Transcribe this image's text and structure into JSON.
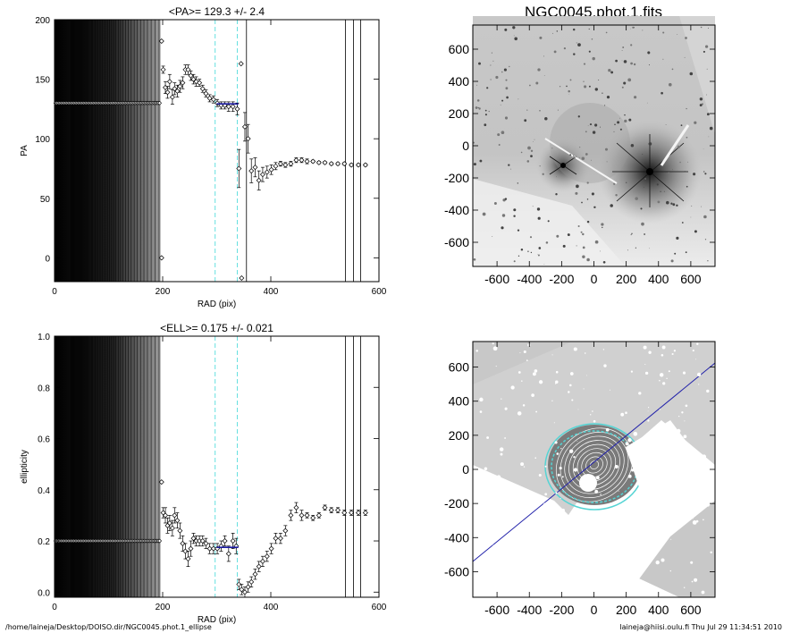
{
  "footer": {
    "path": "/home/laineja/Desktop/DOISO.dir/NGC0045.phot.1_ellipse",
    "user_stamp": "laineja@hiisi.oulu.fi  Thu Jul 29 11:34:51 2010"
  },
  "image_panel": {
    "title": "NGC0045.phot.1.fits",
    "xticks": [
      "-600",
      "-400",
      "-200",
      "0",
      "200",
      "400",
      "600"
    ],
    "yticks": [
      "600",
      "400",
      "200",
      "0",
      "-200",
      "-400",
      "-600"
    ]
  },
  "chart_data": [
    {
      "type": "scatter",
      "title": "<PA>= 129.3 +/-   2.4",
      "xlabel": "RAD (pix)",
      "ylabel": "PA",
      "xlim": [
        0,
        600
      ],
      "ylim": [
        -20,
        200
      ],
      "xticks": [
        0,
        200,
        400,
        600
      ],
      "yticks": [
        0,
        50,
        100,
        150,
        200
      ],
      "mean_value": 129.3,
      "mean_error": 2.4,
      "mean_range": [
        300,
        340
      ],
      "band": [
        297,
        338
      ],
      "inner_fixed_value": 130,
      "inner_fixed_range": [
        0,
        196
      ],
      "points": [
        {
          "x": 198,
          "y": 182,
          "e": 0
        },
        {
          "x": 198,
          "y": 0,
          "e": 0
        },
        {
          "x": 201,
          "y": 158,
          "e": 3
        },
        {
          "x": 205,
          "y": 143,
          "e": 5
        },
        {
          "x": 209,
          "y": 139,
          "e": 5
        },
        {
          "x": 213,
          "y": 148,
          "e": 6
        },
        {
          "x": 218,
          "y": 135,
          "e": 6
        },
        {
          "x": 222,
          "y": 142,
          "e": 5
        },
        {
          "x": 227,
          "y": 140,
          "e": 5
        },
        {
          "x": 232,
          "y": 144,
          "e": 5
        },
        {
          "x": 237,
          "y": 147,
          "e": 5
        },
        {
          "x": 242,
          "y": 158,
          "e": 4
        },
        {
          "x": 247,
          "y": 158,
          "e": 4
        },
        {
          "x": 252,
          "y": 153,
          "e": 4
        },
        {
          "x": 257,
          "y": 150,
          "e": 4
        },
        {
          "x": 262,
          "y": 148,
          "e": 4
        },
        {
          "x": 268,
          "y": 147,
          "e": 3
        },
        {
          "x": 274,
          "y": 142,
          "e": 3
        },
        {
          "x": 280,
          "y": 138,
          "e": 3
        },
        {
          "x": 287,
          "y": 134,
          "e": 3
        },
        {
          "x": 294,
          "y": 133,
          "e": 3
        },
        {
          "x": 301,
          "y": 130,
          "e": 3
        },
        {
          "x": 308,
          "y": 128,
          "e": 3
        },
        {
          "x": 315,
          "y": 128,
          "e": 3
        },
        {
          "x": 322,
          "y": 127,
          "e": 4
        },
        {
          "x": 330,
          "y": 127,
          "e": 4
        },
        {
          "x": 338,
          "y": 125,
          "e": 5
        },
        {
          "x": 341,
          "y": 75,
          "e": 16
        },
        {
          "x": 345,
          "y": 163,
          "e": 0
        },
        {
          "x": 346,
          "y": -17,
          "e": 0
        },
        {
          "x": 352,
          "y": 110,
          "e": 12
        },
        {
          "x": 358,
          "y": 100,
          "e": 12
        },
        {
          "x": 364,
          "y": 73,
          "e": 10
        },
        {
          "x": 371,
          "y": 76,
          "e": 8
        },
        {
          "x": 378,
          "y": 65,
          "e": 8
        },
        {
          "x": 385,
          "y": 70,
          "e": 6
        },
        {
          "x": 393,
          "y": 72,
          "e": 5
        },
        {
          "x": 401,
          "y": 74,
          "e": 4
        },
        {
          "x": 409,
          "y": 77,
          "e": 3
        },
        {
          "x": 418,
          "y": 79,
          "e": 2
        },
        {
          "x": 427,
          "y": 78,
          "e": 2
        },
        {
          "x": 437,
          "y": 79,
          "e": 2
        },
        {
          "x": 447,
          "y": 82,
          "e": 2
        },
        {
          "x": 457,
          "y": 82,
          "e": 2
        },
        {
          "x": 467,
          "y": 81,
          "e": 2
        },
        {
          "x": 478,
          "y": 81,
          "e": 1
        },
        {
          "x": 489,
          "y": 80,
          "e": 1
        },
        {
          "x": 500,
          "y": 80,
          "e": 1
        },
        {
          "x": 512,
          "y": 79,
          "e": 1
        },
        {
          "x": 524,
          "y": 79,
          "e": 1
        },
        {
          "x": 536,
          "y": 79,
          "e": 1
        },
        {
          "x": 549,
          "y": 78,
          "e": 1
        },
        {
          "x": 562,
          "y": 78,
          "e": 1
        },
        {
          "x": 575,
          "y": 78,
          "e": 1
        }
      ],
      "vlines": [
        355,
        538,
        553,
        566
      ]
    },
    {
      "type": "scatter",
      "title": "<ELL>= 0.175 +/-  0.021",
      "xlabel": "RAD (pix)",
      "ylabel": "ellipticity",
      "xlim": [
        0,
        600
      ],
      "ylim": [
        -0.02,
        1.0
      ],
      "xticks": [
        0,
        200,
        400,
        600
      ],
      "yticks": [
        0.0,
        0.2,
        0.4,
        0.6,
        0.8,
        1.0
      ],
      "ytick_labels": [
        "0.0",
        "0.2",
        "0.4",
        "0.6",
        "0.8",
        "1.0"
      ],
      "mean_value": 0.175,
      "mean_error": 0.021,
      "mean_range": [
        300,
        340
      ],
      "band": [
        297,
        338
      ],
      "inner_fixed_value": 0.2,
      "inner_fixed_range": [
        0,
        196
      ],
      "points": [
        {
          "x": 198,
          "y": 0.43,
          "e": 0
        },
        {
          "x": 201,
          "y": 0.31,
          "e": 0.02
        },
        {
          "x": 205,
          "y": 0.3,
          "e": 0.03
        },
        {
          "x": 209,
          "y": 0.26,
          "e": 0.03
        },
        {
          "x": 213,
          "y": 0.27,
          "e": 0.03
        },
        {
          "x": 218,
          "y": 0.25,
          "e": 0.03
        },
        {
          "x": 222,
          "y": 0.3,
          "e": 0.03
        },
        {
          "x": 227,
          "y": 0.28,
          "e": 0.03
        },
        {
          "x": 232,
          "y": 0.24,
          "e": 0.03
        },
        {
          "x": 237,
          "y": 0.19,
          "e": 0.03
        },
        {
          "x": 242,
          "y": 0.16,
          "e": 0.03
        },
        {
          "x": 247,
          "y": 0.13,
          "e": 0.03
        },
        {
          "x": 252,
          "y": 0.17,
          "e": 0.03
        },
        {
          "x": 257,
          "y": 0.21,
          "e": 0.02
        },
        {
          "x": 262,
          "y": 0.2,
          "e": 0.02
        },
        {
          "x": 268,
          "y": 0.2,
          "e": 0.02
        },
        {
          "x": 274,
          "y": 0.2,
          "e": 0.02
        },
        {
          "x": 280,
          "y": 0.19,
          "e": 0.02
        },
        {
          "x": 287,
          "y": 0.17,
          "e": 0.02
        },
        {
          "x": 294,
          "y": 0.17,
          "e": 0.02
        },
        {
          "x": 301,
          "y": 0.17,
          "e": 0.02
        },
        {
          "x": 308,
          "y": 0.18,
          "e": 0.02
        },
        {
          "x": 315,
          "y": 0.2,
          "e": 0.02
        },
        {
          "x": 322,
          "y": 0.15,
          "e": 0.03
        },
        {
          "x": 330,
          "y": 0.2,
          "e": 0.03
        },
        {
          "x": 336,
          "y": 0.18,
          "e": 0.03
        },
        {
          "x": 341,
          "y": 0.03,
          "e": 0.02
        },
        {
          "x": 346,
          "y": 0.01,
          "e": 0.02
        },
        {
          "x": 352,
          "y": 0.0,
          "e": 0.02
        },
        {
          "x": 358,
          "y": 0.02,
          "e": 0.02
        },
        {
          "x": 364,
          "y": 0.04,
          "e": 0.02
        },
        {
          "x": 371,
          "y": 0.07,
          "e": 0.02
        },
        {
          "x": 378,
          "y": 0.1,
          "e": 0.02
        },
        {
          "x": 385,
          "y": 0.12,
          "e": 0.02
        },
        {
          "x": 393,
          "y": 0.14,
          "e": 0.02
        },
        {
          "x": 401,
          "y": 0.17,
          "e": 0.02
        },
        {
          "x": 409,
          "y": 0.21,
          "e": 0.02
        },
        {
          "x": 418,
          "y": 0.21,
          "e": 0.02
        },
        {
          "x": 427,
          "y": 0.24,
          "e": 0.02
        },
        {
          "x": 437,
          "y": 0.3,
          "e": 0.02
        },
        {
          "x": 447,
          "y": 0.33,
          "e": 0.02
        },
        {
          "x": 457,
          "y": 0.3,
          "e": 0.02
        },
        {
          "x": 467,
          "y": 0.3,
          "e": 0.01
        },
        {
          "x": 478,
          "y": 0.29,
          "e": 0.01
        },
        {
          "x": 489,
          "y": 0.3,
          "e": 0.01
        },
        {
          "x": 500,
          "y": 0.33,
          "e": 0.01
        },
        {
          "x": 512,
          "y": 0.32,
          "e": 0.01
        },
        {
          "x": 524,
          "y": 0.32,
          "e": 0.01
        },
        {
          "x": 536,
          "y": 0.31,
          "e": 0.01
        },
        {
          "x": 549,
          "y": 0.31,
          "e": 0.01
        },
        {
          "x": 562,
          "y": 0.31,
          "e": 0.01
        },
        {
          "x": 575,
          "y": 0.31,
          "e": 0.01
        }
      ],
      "vlines": [
        538,
        553,
        566
      ]
    }
  ]
}
